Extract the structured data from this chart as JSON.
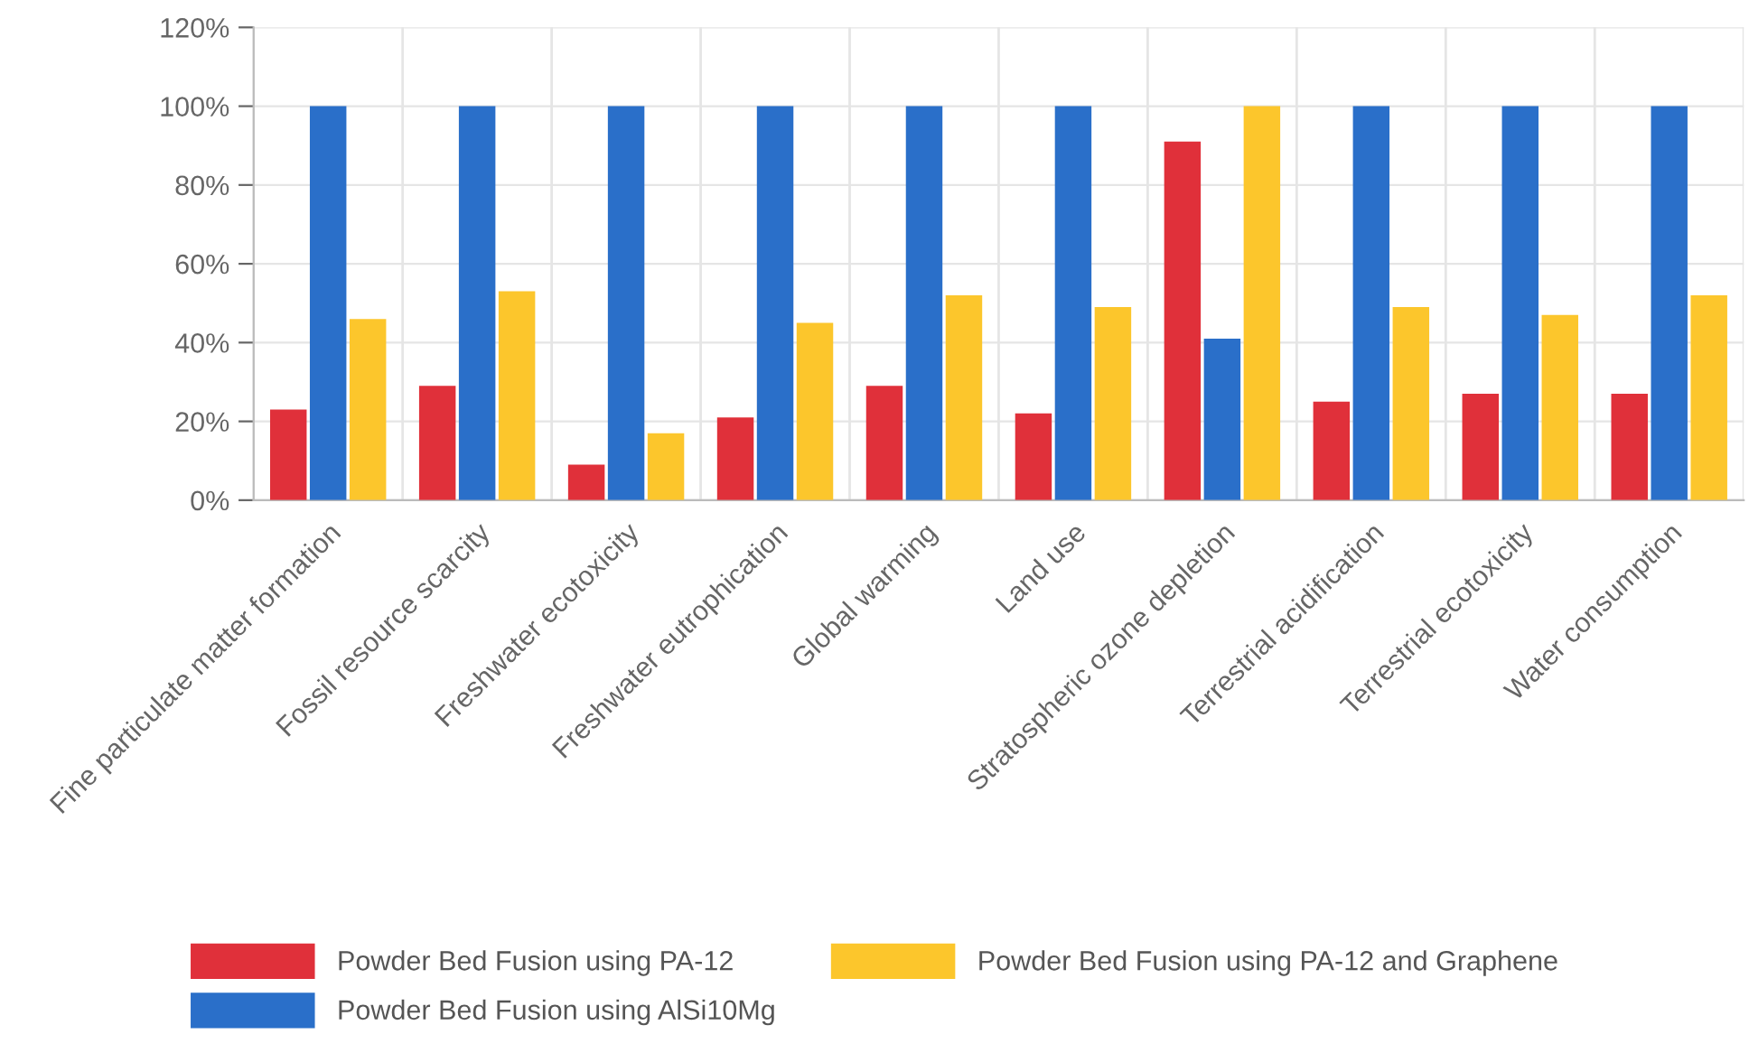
{
  "chart_data": {
    "type": "bar",
    "categories": [
      "Fine particulate matter formation",
      "Fossil resource scarcity",
      "Freshwater ecotoxicity",
      "Freshwater eutrophication",
      "Global warming",
      "Land use",
      "Stratospheric ozone depletion",
      "Terrestrial acidification",
      "Terrestrial ecotoxicity",
      "Water consumption"
    ],
    "series": [
      {
        "name": "Powder Bed Fusion using PA-12",
        "color": "#e0303a",
        "values": [
          23,
          29,
          9,
          21,
          29,
          22,
          91,
          25,
          27,
          27
        ]
      },
      {
        "name": "Powder Bed Fusion using AlSi10Mg",
        "color": "#2a6fc9",
        "values": [
          100,
          100,
          100,
          100,
          100,
          100,
          41,
          100,
          100,
          100
        ]
      },
      {
        "name": "Powder Bed Fusion using PA-12 and Graphene",
        "color": "#fcc62c",
        "values": [
          46,
          53,
          17,
          45,
          52,
          49,
          100,
          49,
          47,
          52
        ]
      }
    ],
    "ylim": [
      0,
      120
    ],
    "yticks": [
      {
        "value": 0,
        "label": "0%"
      },
      {
        "value": 20,
        "label": "20%"
      },
      {
        "value": 40,
        "label": "40%"
      },
      {
        "value": 60,
        "label": "60%"
      },
      {
        "value": 80,
        "label": "80%"
      },
      {
        "value": 100,
        "label": "100%"
      },
      {
        "value": 120,
        "label": "120%"
      }
    ],
    "grid": true,
    "legend": "bottom"
  }
}
